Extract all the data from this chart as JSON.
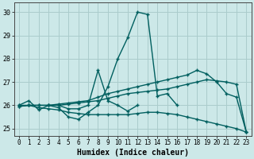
{
  "xlabel": "Humidex (Indice chaleur)",
  "xlim": [
    -0.5,
    23.5
  ],
  "ylim": [
    24.7,
    30.4
  ],
  "yticks": [
    25,
    26,
    27,
    28,
    29,
    30
  ],
  "xticks": [
    0,
    1,
    2,
    3,
    4,
    5,
    6,
    7,
    8,
    9,
    10,
    11,
    12,
    13,
    14,
    15,
    16,
    17,
    18,
    19,
    20,
    21,
    22,
    23
  ],
  "bg_color": "#cce8e8",
  "grid_color": "#aacccc",
  "line_color": "#005f5f",
  "lines": [
    {
      "x": [
        0,
        1,
        2,
        3,
        4,
        5,
        6,
        7,
        8,
        9,
        10,
        11,
        12,
        13,
        14,
        15,
        16
      ],
      "y": [
        26.0,
        26.2,
        25.8,
        26.0,
        25.9,
        25.5,
        25.4,
        25.7,
        26.0,
        26.8,
        28.0,
        28.9,
        30.0,
        29.9,
        26.4,
        26.5,
        26.0
      ]
    },
    {
      "x": [
        4,
        5,
        6,
        7,
        8,
        9,
        10,
        11,
        12
      ],
      "y": [
        26.0,
        25.85,
        25.85,
        26.0,
        27.5,
        26.2,
        26.0,
        25.75,
        26.0
      ]
    },
    {
      "x": [
        0,
        1,
        2,
        3,
        4,
        5,
        6,
        7,
        8,
        9,
        10,
        11,
        12,
        13,
        14,
        15,
        16,
        17,
        18,
        19,
        20,
        21,
        22,
        23
      ],
      "y": [
        25.95,
        26.0,
        26.0,
        26.0,
        26.0,
        26.05,
        26.1,
        26.15,
        26.2,
        26.3,
        26.4,
        26.5,
        26.55,
        26.6,
        26.65,
        26.7,
        26.8,
        26.9,
        27.0,
        27.1,
        27.05,
        27.0,
        26.9,
        24.85
      ]
    },
    {
      "x": [
        0,
        1,
        2,
        3,
        4,
        5,
        6,
        7,
        8,
        9,
        10,
        11,
        12,
        13,
        14,
        15,
        16,
        17,
        18,
        19,
        20,
        21,
        22,
        23
      ],
      "y": [
        25.95,
        26.0,
        26.0,
        26.0,
        26.05,
        26.1,
        26.15,
        26.2,
        26.35,
        26.5,
        26.6,
        26.7,
        26.8,
        26.9,
        27.0,
        27.1,
        27.2,
        27.3,
        27.5,
        27.35,
        27.0,
        26.5,
        26.35,
        24.85
      ]
    },
    {
      "x": [
        0,
        1,
        2,
        3,
        4,
        5,
        6,
        7,
        8,
        9,
        10,
        11,
        12,
        13,
        14,
        15,
        16,
        17,
        18,
        19,
        20,
        21,
        22,
        23
      ],
      "y": [
        26.0,
        26.0,
        25.9,
        25.85,
        25.8,
        25.7,
        25.65,
        25.6,
        25.6,
        25.6,
        25.6,
        25.6,
        25.65,
        25.7,
        25.7,
        25.65,
        25.6,
        25.5,
        25.4,
        25.3,
        25.2,
        25.1,
        25.0,
        24.85
      ]
    }
  ]
}
